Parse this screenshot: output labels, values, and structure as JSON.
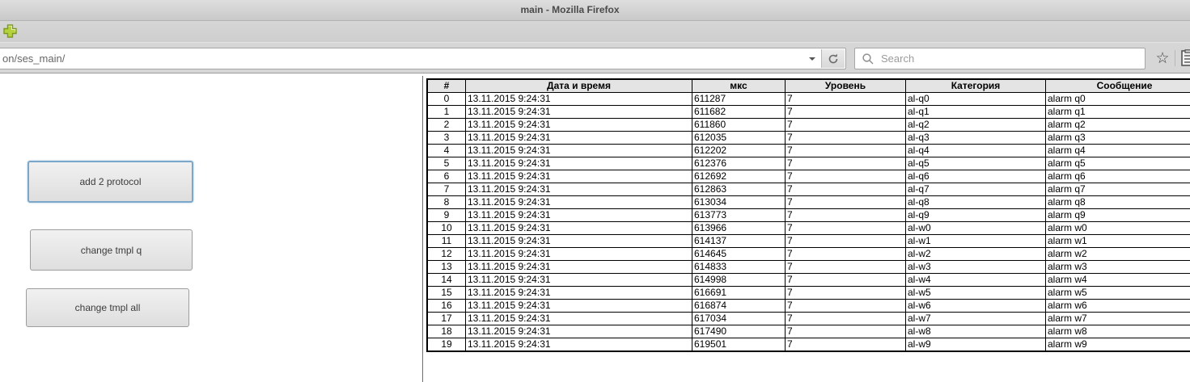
{
  "window": {
    "title": "main - Mozilla Firefox"
  },
  "browser_chrome": {
    "url_bar": {
      "value": "on/ses_main/"
    },
    "search_box": {
      "placeholder": "Search"
    },
    "bookmark_star_glyph": "☆"
  },
  "page": {
    "buttons": [
      {
        "label": "add 2 protocol",
        "focused": true
      },
      {
        "label": "change tmpl q",
        "focused": false
      },
      {
        "label": "change tmpl all",
        "focused": false
      }
    ],
    "log_table": {
      "headers": [
        "#",
        "Дата и время",
        "мкс",
        "Уровень",
        "Категория",
        "Сообщение"
      ],
      "rows": [
        [
          "0",
          "13.11.2015 9:24:31",
          "611287",
          "7",
          "al-q0",
          "alarm q0"
        ],
        [
          "1",
          "13.11.2015 9:24:31",
          "611682",
          "7",
          "al-q1",
          "alarm q1"
        ],
        [
          "2",
          "13.11.2015 9:24:31",
          "611860",
          "7",
          "al-q2",
          "alarm q2"
        ],
        [
          "3",
          "13.11.2015 9:24:31",
          "612035",
          "7",
          "al-q3",
          "alarm q3"
        ],
        [
          "4",
          "13.11.2015 9:24:31",
          "612202",
          "7",
          "al-q4",
          "alarm q4"
        ],
        [
          "5",
          "13.11.2015 9:24:31",
          "612376",
          "7",
          "al-q5",
          "alarm q5"
        ],
        [
          "6",
          "13.11.2015 9:24:31",
          "612692",
          "7",
          "al-q6",
          "alarm q6"
        ],
        [
          "7",
          "13.11.2015 9:24:31",
          "612863",
          "7",
          "al-q7",
          "alarm q7"
        ],
        [
          "8",
          "13.11.2015 9:24:31",
          "613034",
          "7",
          "al-q8",
          "alarm q8"
        ],
        [
          "9",
          "13.11.2015 9:24:31",
          "613773",
          "7",
          "al-q9",
          "alarm q9"
        ],
        [
          "10",
          "13.11.2015 9:24:31",
          "613966",
          "7",
          "al-w0",
          "alarm w0"
        ],
        [
          "11",
          "13.11.2015 9:24:31",
          "614137",
          "7",
          "al-w1",
          "alarm w1"
        ],
        [
          "12",
          "13.11.2015 9:24:31",
          "614645",
          "7",
          "al-w2",
          "alarm w2"
        ],
        [
          "13",
          "13.11.2015 9:24:31",
          "614833",
          "7",
          "al-w3",
          "alarm w3"
        ],
        [
          "14",
          "13.11.2015 9:24:31",
          "614998",
          "7",
          "al-w4",
          "alarm w4"
        ],
        [
          "15",
          "13.11.2015 9:24:31",
          "616691",
          "7",
          "al-w5",
          "alarm w5"
        ],
        [
          "16",
          "13.11.2015 9:24:31",
          "616874",
          "7",
          "al-w6",
          "alarm w6"
        ],
        [
          "17",
          "13.11.2015 9:24:31",
          "617034",
          "7",
          "al-w7",
          "alarm w7"
        ],
        [
          "18",
          "13.11.2015 9:24:31",
          "617490",
          "7",
          "al-w8",
          "alarm w8"
        ],
        [
          "19",
          "13.11.2015 9:24:31",
          "619501",
          "7",
          "al-w9",
          "alarm w9"
        ]
      ]
    }
  },
  "colors": {
    "focus_border": "#7ba7cb",
    "plus_green": "#aac83e",
    "table_header_bg": "#e4e4e4"
  }
}
